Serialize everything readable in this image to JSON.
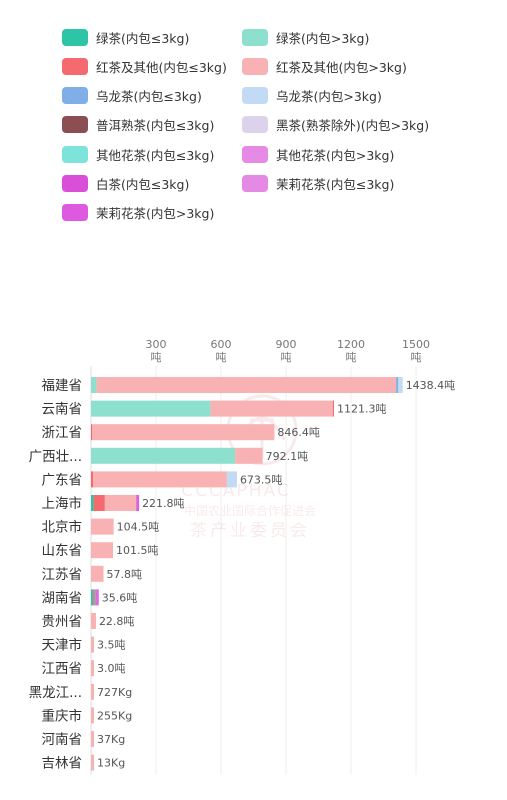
{
  "chart_data": {
    "type": "bar",
    "stacked": true,
    "orientation": "horizontal",
    "x_ticks": [
      {
        "value": 300,
        "label": "300",
        "unit": "吨"
      },
      {
        "value": 600,
        "label": "600",
        "unit": "吨"
      },
      {
        "value": 900,
        "label": "900",
        "unit": "吨"
      },
      {
        "value": 1200,
        "label": "1200",
        "unit": "吨"
      },
      {
        "value": 1500,
        "label": "1500",
        "unit": "吨"
      }
    ],
    "xlim": [
      0,
      1500
    ],
    "grid": true,
    "legend_position": "top",
    "legend": [
      {
        "name": "绿茶(内包≤3kg)",
        "color": "#2EC4A6"
      },
      {
        "name": "绿茶(内包>3kg)",
        "color": "#8EE0CE"
      },
      {
        "name": "红茶及其他(内包≤3kg)",
        "color": "#F46A6E"
      },
      {
        "name": "红茶及其他(内包>3kg)",
        "color": "#F8B2B4"
      },
      {
        "name": "乌龙茶(内包≤3kg)",
        "color": "#7FAFE6"
      },
      {
        "name": "乌龙茶(内包>3kg)",
        "color": "#C2DAF3"
      },
      {
        "name": "普洱熟茶(内包≤3kg)",
        "color": "#8B4E52"
      },
      {
        "name": "黑茶(熟茶除外)(内包>3kg)",
        "color": "#DCD2EC"
      },
      {
        "name": "其他花茶(内包≤3kg)",
        "color": "#7EE3D8"
      },
      {
        "name": "其他花茶(内包>3kg)",
        "color": "#E58BE6"
      },
      {
        "name": "白茶(内包≤3kg)",
        "color": "#D94FD8"
      },
      {
        "name": "茉莉花茶(内包≤3kg)",
        "color": "#E48AE5"
      },
      {
        "name": "茉莉花茶(内包>3kg)",
        "color": "#DC59E0"
      }
    ],
    "categories": [
      "福建省",
      "云南省",
      "浙江省",
      "广西壮...",
      "广东省",
      "上海市",
      "北京市",
      "山东省",
      "江苏省",
      "湖南省",
      "贵州省",
      "天津市",
      "江西省",
      "黑龙江...",
      "重庆市",
      "河南省",
      "吉林省"
    ],
    "totals": [
      1438.4,
      1121.3,
      846.4,
      792.1,
      673.5,
      221.8,
      104.5,
      101.5,
      57.8,
      35.6,
      22.8,
      3.5,
      3.0,
      0.727,
      0.255,
      0.037,
      0.013
    ],
    "total_labels": [
      "1438.4吨",
      "1121.3吨",
      "846.4吨",
      "792.1吨",
      "673.5吨",
      "221.8吨",
      "104.5吨",
      "101.5吨",
      "57.8吨",
      "35.6吨",
      "22.8吨",
      "3.5吨",
      "3.0吨",
      "727Kg",
      "255Kg",
      "37Kg",
      "13Kg"
    ],
    "segments": [
      [
        {
          "series": "绿茶(内包>3kg)",
          "value": 25
        },
        {
          "series": "红茶及其他(内包>3kg)",
          "value": 1383
        },
        {
          "series": "乌龙茶(内包≤3kg)",
          "value": 10
        },
        {
          "series": "乌龙茶(内包>3kg)",
          "value": 20.4
        }
      ],
      [
        {
          "series": "绿茶(内包>3kg)",
          "value": 551
        },
        {
          "series": "红茶及其他(内包>3kg)",
          "value": 565
        },
        {
          "series": "红茶及其他(内包≤3kg)",
          "value": 5.3
        }
      ],
      [
        {
          "series": "红茶及其他(内包≤3kg)",
          "value": 6
        },
        {
          "series": "红茶及其他(内包>3kg)",
          "value": 840.4
        }
      ],
      [
        {
          "series": "绿茶(内包>3kg)",
          "value": 665
        },
        {
          "series": "红茶及其他(内包>3kg)",
          "value": 127.1
        }
      ],
      [
        {
          "series": "红茶及其他(内包≤3kg)",
          "value": 10
        },
        {
          "series": "红茶及其他(内包>3kg)",
          "value": 617
        },
        {
          "series": "乌龙茶(内包>3kg)",
          "value": 46.5
        }
      ],
      [
        {
          "series": "绿茶(内包≤3kg)",
          "value": 12
        },
        {
          "series": "红茶及其他(内包≤3kg)",
          "value": 52
        },
        {
          "series": "红茶及其他(内包>3kg)",
          "value": 145
        },
        {
          "series": "白茶(内包≤3kg)",
          "value": 5
        },
        {
          "series": "茉莉花茶(内包>3kg)",
          "value": 7.8
        }
      ],
      [
        {
          "series": "红茶及其他(内包>3kg)",
          "value": 104.5
        }
      ],
      [
        {
          "series": "红茶及其他(内包>3kg)",
          "value": 101.5
        }
      ],
      [
        {
          "series": "红茶及其他(内包>3kg)",
          "value": 57.8
        }
      ],
      [
        {
          "series": "绿茶(内包≤3kg)",
          "value": 10
        },
        {
          "series": "红茶及其他(内包≤3kg)",
          "value": 8
        },
        {
          "series": "乌龙茶(内包≤3kg)",
          "value": 6
        },
        {
          "series": "白茶(内包≤3kg)",
          "value": 5
        },
        {
          "series": "茉莉花茶(内包>3kg)",
          "value": 6.6
        }
      ],
      [
        {
          "series": "红茶及其他(内包>3kg)",
          "value": 22.8
        }
      ],
      [
        {
          "series": "红茶及其他(内包>3kg)",
          "value": 3.5
        }
      ],
      [
        {
          "series": "红茶及其他(内包>3kg)",
          "value": 3.0
        }
      ],
      [
        {
          "series": "红茶及其他(内包>3kg)",
          "value": 0.727
        }
      ],
      [
        {
          "series": "红茶及其他(内包>3kg)",
          "value": 0.255
        }
      ],
      [
        {
          "series": "红茶及其他(内包>3kg)",
          "value": 0.037
        }
      ],
      [
        {
          "series": "红茶及其他(内包>3kg)",
          "value": 0.013
        }
      ]
    ],
    "watermark": {
      "latin": "CCCAPHAC",
      "line1": "中国农业国际合作促进会",
      "line2": "茶产业委员会"
    }
  }
}
